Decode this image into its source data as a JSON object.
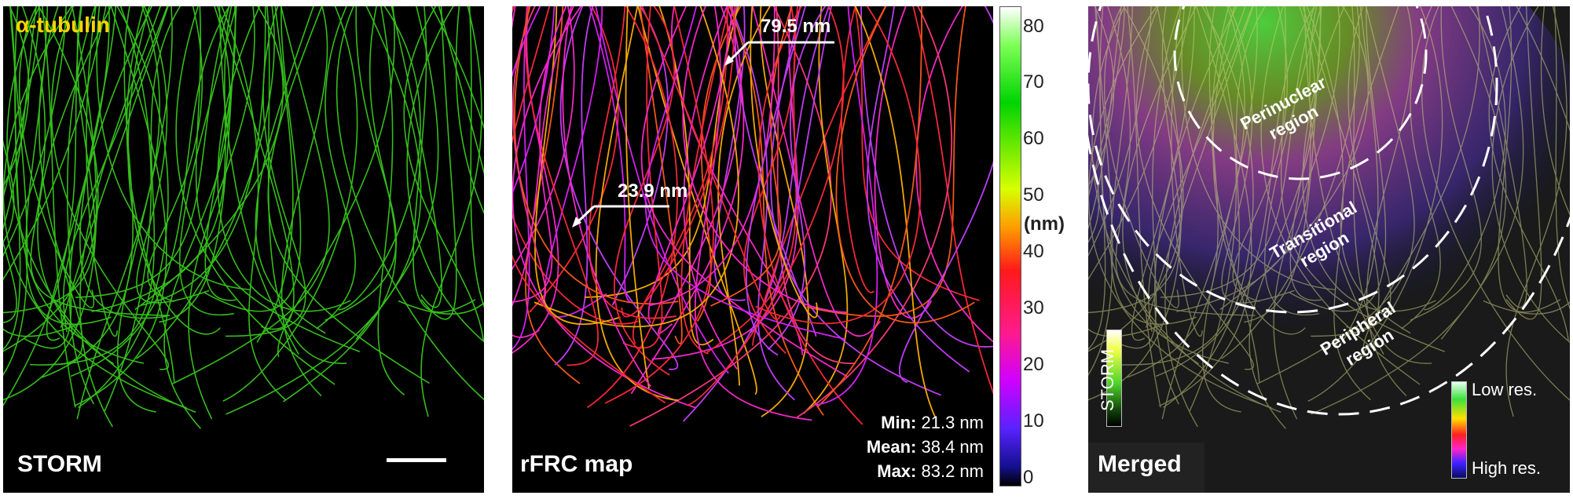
{
  "panels": {
    "storm": {
      "label": "STORM",
      "stain": "α-tubulin"
    },
    "rfrc": {
      "label": "rFRC map",
      "annotation_high": "79.5 nm",
      "annotation_low": "23.9 nm",
      "stats": {
        "min_label": "Min:",
        "min_value": "21.3 nm",
        "mean_label": "Mean:",
        "mean_value": "38.4 nm",
        "max_label": "Max:",
        "max_value": "83.2 nm"
      }
    },
    "merged": {
      "label": "Merged",
      "regions": {
        "perinuclear_1": "Perinuclear",
        "perinuclear_2": "region",
        "transitional_1": "Transitional",
        "transitional_2": "region",
        "peripheral_1": "Peripheral",
        "peripheral_2": "region"
      },
      "storm_bar_label": "STORM",
      "res_low": "Low res.",
      "res_high": "High res."
    }
  },
  "colorbar": {
    "unit": "(nm)",
    "ticks": [
      "80",
      "70",
      "60",
      "50",
      "40",
      "30",
      "20",
      "10",
      "0"
    ]
  },
  "colors": {
    "stain_text": "#ffd400",
    "microtubule_green": "#3bd21f",
    "rfrc_red": "#ff2a3a",
    "rfrc_magenta": "#ff2ad0"
  }
}
